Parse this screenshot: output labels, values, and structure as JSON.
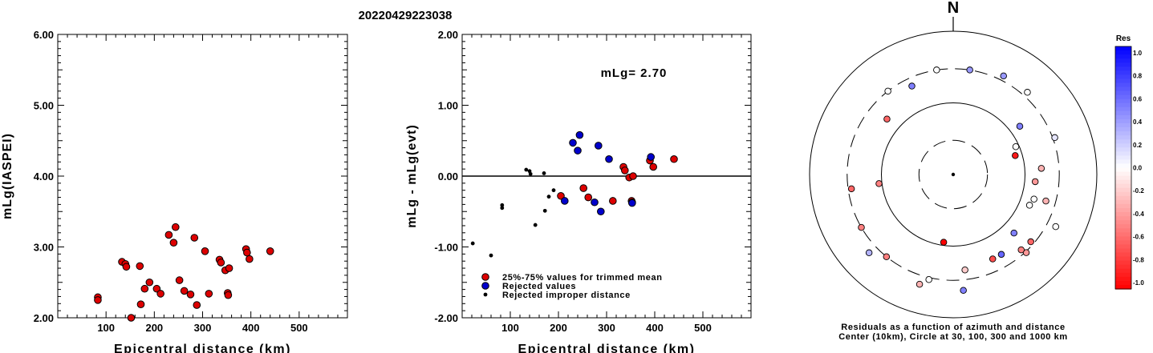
{
  "figure": {
    "title": "20220429223038"
  },
  "chart_data": [
    {
      "type": "scatter",
      "xlabel": "Epicentral distance (km)",
      "ylabel": "mLg(IASPEI)",
      "xlim": [
        0,
        600
      ],
      "ylim": [
        2.0,
        6.0
      ],
      "xticks": [
        100,
        200,
        300,
        400,
        500
      ],
      "yticks": [
        2.0,
        3.0,
        4.0,
        5.0,
        6.0
      ],
      "xtick_labels": [
        "100",
        "200",
        "300",
        "400",
        "500"
      ],
      "ytick_labels": [
        "2.00",
        "3.00",
        "4.00",
        "5.00",
        "6.00"
      ],
      "series": [
        {
          "color": "#dd0000",
          "points": [
            [
              83,
              2.29
            ],
            [
              83,
              2.25
            ],
            [
              133,
              2.79
            ],
            [
              140,
              2.76
            ],
            [
              142,
              2.72
            ],
            [
              152,
              2.0
            ],
            [
              170,
              2.73
            ],
            [
              172,
              2.19
            ],
            [
              180,
              2.41
            ],
            [
              190,
              2.5
            ],
            [
              205,
              2.41
            ],
            [
              213,
              2.34
            ],
            [
              230,
              3.17
            ],
            [
              240,
              3.06
            ],
            [
              244,
              3.28
            ],
            [
              252,
              2.53
            ],
            [
              262,
              2.38
            ],
            [
              275,
              2.33
            ],
            [
              283,
              3.13
            ],
            [
              288,
              2.18
            ],
            [
              305,
              2.94
            ],
            [
              313,
              2.34
            ],
            [
              335,
              2.82
            ],
            [
              338,
              2.78
            ],
            [
              347,
              2.67
            ],
            [
              352,
              2.35
            ],
            [
              353,
              2.32
            ],
            [
              355,
              2.7
            ],
            [
              390,
              2.97
            ],
            [
              392,
              2.92
            ],
            [
              397,
              2.83
            ],
            [
              440,
              2.94
            ]
          ]
        }
      ]
    },
    {
      "type": "scatter",
      "xlabel": "Epicentral distance (km)",
      "ylabel": "mLg - mLg(evt)",
      "xlim": [
        0,
        600
      ],
      "ylim": [
        -2.0,
        2.0
      ],
      "xticks": [
        100,
        200,
        300,
        400,
        500
      ],
      "yticks": [
        -2.0,
        -1.0,
        0.0,
        1.0,
        2.0
      ],
      "xtick_labels": [
        "100",
        "200",
        "300",
        "400",
        "500"
      ],
      "ytick_labels": [
        "-2.00",
        "-1.00",
        "0.00",
        "1.00",
        "2.00"
      ],
      "annotation": "mLg= 2.70",
      "legend": [
        {
          "label": "25%-75% values for trimmed mean",
          "color": "#dd0000",
          "marker": "circle"
        },
        {
          "label": "Rejected values",
          "color": "#0000cc",
          "marker": "circle"
        },
        {
          "label": "Rejected improper distance",
          "color": "#000000",
          "marker": "dot"
        }
      ],
      "series": [
        {
          "color": "#dd0000",
          "points": [
            [
              205,
              -0.28
            ],
            [
              252,
              -0.17
            ],
            [
              262,
              -0.3
            ],
            [
              313,
              -0.35
            ],
            [
              335,
              0.13
            ],
            [
              338,
              0.08
            ],
            [
              347,
              -0.02
            ],
            [
              352,
              -0.35
            ],
            [
              353,
              -0.37
            ],
            [
              355,
              0.0
            ],
            [
              390,
              0.22
            ],
            [
              397,
              0.13
            ],
            [
              440,
              0.24
            ]
          ]
        },
        {
          "color": "#0000cc",
          "points": [
            [
              213,
              -0.35
            ],
            [
              230,
              0.47
            ],
            [
              240,
              0.36
            ],
            [
              244,
              0.58
            ],
            [
              275,
              -0.37
            ],
            [
              283,
              0.43
            ],
            [
              288,
              -0.5
            ],
            [
              305,
              0.24
            ],
            [
              353,
              -0.38
            ],
            [
              392,
              0.27
            ]
          ]
        },
        {
          "color": "#000000",
          "points": [
            [
              22,
              -0.95
            ],
            [
              60,
              -1.12
            ],
            [
              83,
              -0.41
            ],
            [
              83,
              -0.45
            ],
            [
              133,
              0.09
            ],
            [
              140,
              0.07
            ],
            [
              142,
              0.03
            ],
            [
              152,
              -0.69
            ],
            [
              170,
              0.04
            ],
            [
              172,
              -0.49
            ],
            [
              180,
              -0.29
            ],
            [
              190,
              -0.2
            ]
          ]
        }
      ]
    },
    {
      "type": "polar",
      "north_label": "N",
      "caption_line1": "Residuals as a function of azimuth and distance",
      "caption_line2": "Center (10km), Circle at 30, 100, 300 and 1000 km",
      "colorbar_title": "Res",
      "colorbar_ticks": [
        "1.0",
        "0.8",
        "0.6",
        "0.4",
        "0.2",
        "0.0",
        "-0.2",
        "-0.4",
        "-0.6",
        "-0.8",
        "-1.0"
      ],
      "stations": [
        {
          "az": 73,
          "dist": 80,
          "res": -0.9
        },
        {
          "az": 188,
          "dist": 90,
          "res": -1.0
        },
        {
          "az": 351,
          "dist": 300,
          "res": 0.0
        },
        {
          "az": 9,
          "dist": 300,
          "res": 0.4
        },
        {
          "az": 27,
          "dist": 350,
          "res": 0.4
        },
        {
          "az": 310,
          "dist": 160,
          "res": -0.6
        },
        {
          "az": 322,
          "dist": 300,
          "res": 0.0
        },
        {
          "az": 335,
          "dist": 230,
          "res": 0.5
        },
        {
          "az": 42,
          "dist": 350,
          "res": 0.0
        },
        {
          "az": 54,
          "dist": 140,
          "res": 0.5
        },
        {
          "az": 66,
          "dist": 90,
          "res": 0.0
        },
        {
          "az": 70,
          "dist": 320,
          "res": 0.1
        },
        {
          "az": 86,
          "dist": 170,
          "res": -0.3
        },
        {
          "az": 95,
          "dist": 140,
          "res": -0.4
        },
        {
          "az": 263,
          "dist": 110,
          "res": -0.5
        },
        {
          "az": 262,
          "dist": 270,
          "res": -0.6
        },
        {
          "az": 107,
          "dist": 150,
          "res": 0.0
        },
        {
          "az": 106,
          "dist": 220,
          "res": -0.3
        },
        {
          "az": 112,
          "dist": 140,
          "res": 0.0
        },
        {
          "az": 117,
          "dist": 400,
          "res": 0.0
        },
        {
          "az": 134,
          "dist": 150,
          "res": 0.5
        },
        {
          "az": 137,
          "dist": 310,
          "res": -0.4
        },
        {
          "az": 131,
          "dist": 270,
          "res": -0.6
        },
        {
          "az": 138,
          "dist": 260,
          "res": -0.5
        },
        {
          "az": 149,
          "dist": 200,
          "res": 0.6
        },
        {
          "az": 155,
          "dist": 200,
          "res": -0.7
        },
        {
          "az": 173,
          "dist": 220,
          "res": -0.2
        },
        {
          "az": 193,
          "dist": 320,
          "res": 0.0
        },
        {
          "az": 175,
          "dist": 420,
          "res": 0.5
        },
        {
          "az": 197,
          "dist": 400,
          "res": -0.3
        },
        {
          "az": 219,
          "dist": 300,
          "res": -0.5
        },
        {
          "az": 227,
          "dist": 400,
          "res": 0.3
        },
        {
          "az": 240,
          "dist": 300,
          "res": -0.5
        }
      ]
    }
  ]
}
